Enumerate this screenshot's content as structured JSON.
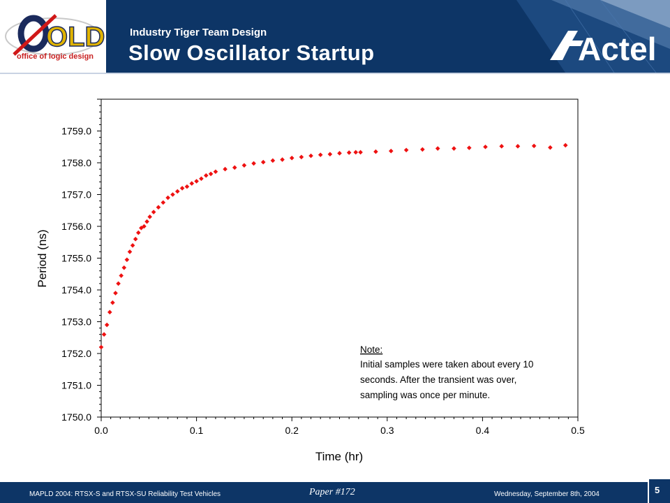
{
  "header": {
    "subtitle": "Industry Tiger Team Design",
    "title": "Slow Oscillator Startup",
    "logo_text": "OLD",
    "logo_caption": "office of logic design",
    "brand": "Actel"
  },
  "footer": {
    "left": "MAPLD 2004: RTSX-S and RTSX-SU Reliability Test Vehicles",
    "center": "Paper #172",
    "right": "Wednesday, September 8th, 2004",
    "page": "5"
  },
  "chart_data": {
    "type": "scatter",
    "title": "",
    "xlabel": "Time (hr)",
    "ylabel": "Period (ns)",
    "xlim": [
      0,
      0.5
    ],
    "ylim": [
      1750.0,
      1760.0
    ],
    "x_ticks": [
      "0.0",
      "0.1",
      "0.2",
      "0.3",
      "0.4",
      "0.5"
    ],
    "y_ticks": [
      "1750.0",
      "1751.0",
      "1752.0",
      "1753.0",
      "1754.0",
      "1755.0",
      "1756.0",
      "1757.0",
      "1758.0",
      "1759.0"
    ],
    "grid": false,
    "legend": "none",
    "marker_color": "#ee1111",
    "annotation": {
      "heading": "Note:",
      "lines": [
        "Initial samples were taken about every 10",
        "seconds.  After the transient was over,",
        "sampling was once per minute."
      ]
    },
    "series": [
      {
        "x": [
          0.0,
          0.003,
          0.006,
          0.009,
          0.012,
          0.015,
          0.018,
          0.021,
          0.024,
          0.027,
          0.03,
          0.033,
          0.036,
          0.039,
          0.042,
          0.045,
          0.048,
          0.051,
          0.055,
          0.06,
          0.065,
          0.07,
          0.075,
          0.08,
          0.085,
          0.09,
          0.095,
          0.1,
          0.105,
          0.11,
          0.115,
          0.12,
          0.13,
          0.14,
          0.15,
          0.16,
          0.17,
          0.18,
          0.19,
          0.2,
          0.21,
          0.22,
          0.23,
          0.24,
          0.25,
          0.26,
          0.267,
          0.272,
          0.288,
          0.304,
          0.32,
          0.337,
          0.353,
          0.37,
          0.386,
          0.403,
          0.42,
          0.437,
          0.454,
          0.471,
          0.487
        ],
        "y": [
          1752.2,
          1752.6,
          1752.9,
          1753.3,
          1753.6,
          1753.9,
          1754.2,
          1754.45,
          1754.7,
          1754.95,
          1755.2,
          1755.4,
          1755.6,
          1755.8,
          1755.95,
          1756.0,
          1756.15,
          1756.3,
          1756.45,
          1756.6,
          1756.75,
          1756.9,
          1757.0,
          1757.1,
          1757.2,
          1757.25,
          1757.35,
          1757.42,
          1757.5,
          1757.6,
          1757.65,
          1757.72,
          1757.8,
          1757.85,
          1757.92,
          1757.98,
          1758.02,
          1758.07,
          1758.1,
          1758.15,
          1758.18,
          1758.22,
          1758.25,
          1758.27,
          1758.3,
          1758.32,
          1758.33,
          1758.33,
          1758.35,
          1758.37,
          1758.4,
          1758.42,
          1758.45,
          1758.45,
          1758.47,
          1758.5,
          1758.52,
          1758.52,
          1758.53,
          1758.48,
          1758.55
        ]
      }
    ]
  }
}
